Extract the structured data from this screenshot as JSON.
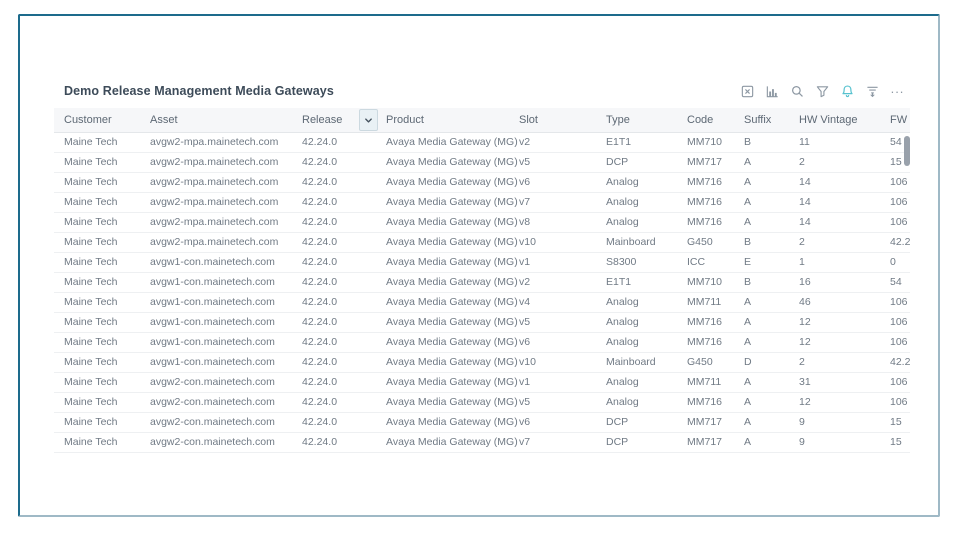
{
  "header": {
    "title": "Demo Release Management Media Gateways"
  },
  "toolbar": {
    "accent_color": "#57c2cf",
    "icon_color": "#8d98a3",
    "icons": [
      "excel-export-icon",
      "bar-chart-icon",
      "search-icon",
      "filter-funnel-icon",
      "alerts-bell-icon",
      "clear-filters-icon",
      "more-options-icon"
    ],
    "more_label": "..."
  },
  "table": {
    "columns": [
      {
        "label": "Customer"
      },
      {
        "label": "Asset"
      },
      {
        "label": "Release",
        "filter_dropdown": true
      },
      {
        "label": "Product"
      },
      {
        "label": "Slot"
      },
      {
        "label": "Type"
      },
      {
        "label": "Code"
      },
      {
        "label": "Suffix"
      },
      {
        "label": "HW Vintage"
      },
      {
        "label": "FW"
      }
    ],
    "rows": [
      [
        "Maine Tech",
        "avgw2-mpa.mainetech.com",
        "42.24.0",
        "Avaya Media Gateway (MG)",
        "v2",
        "E1T1",
        "MM710",
        "B",
        "11",
        "54"
      ],
      [
        "Maine Tech",
        "avgw2-mpa.mainetech.com",
        "42.24.0",
        "Avaya Media Gateway (MG)",
        "v5",
        "DCP",
        "MM717",
        "A",
        "2",
        "15"
      ],
      [
        "Maine Tech",
        "avgw2-mpa.mainetech.com",
        "42.24.0",
        "Avaya Media Gateway (MG)",
        "v6",
        "Analog",
        "MM716",
        "A",
        "14",
        "106"
      ],
      [
        "Maine Tech",
        "avgw2-mpa.mainetech.com",
        "42.24.0",
        "Avaya Media Gateway (MG)",
        "v7",
        "Analog",
        "MM716",
        "A",
        "14",
        "106"
      ],
      [
        "Maine Tech",
        "avgw2-mpa.mainetech.com",
        "42.24.0",
        "Avaya Media Gateway (MG)",
        "v8",
        "Analog",
        "MM716",
        "A",
        "14",
        "106"
      ],
      [
        "Maine Tech",
        "avgw2-mpa.mainetech.com",
        "42.24.0",
        "Avaya Media Gateway (MG)",
        "v10",
        "Mainboard",
        "G450",
        "B",
        "2",
        "42.2"
      ],
      [
        "Maine Tech",
        "avgw1-con.mainetech.com",
        "42.24.0",
        "Avaya Media Gateway (MG)",
        "v1",
        "S8300",
        "ICC",
        "E",
        "1",
        "0"
      ],
      [
        "Maine Tech",
        "avgw1-con.mainetech.com",
        "42.24.0",
        "Avaya Media Gateway (MG)",
        "v2",
        "E1T1",
        "MM710",
        "B",
        "16",
        "54"
      ],
      [
        "Maine Tech",
        "avgw1-con.mainetech.com",
        "42.24.0",
        "Avaya Media Gateway (MG)",
        "v4",
        "Analog",
        "MM711",
        "A",
        "46",
        "106"
      ],
      [
        "Maine Tech",
        "avgw1-con.mainetech.com",
        "42.24.0",
        "Avaya Media Gateway (MG)",
        "v5",
        "Analog",
        "MM716",
        "A",
        "12",
        "106"
      ],
      [
        "Maine Tech",
        "avgw1-con.mainetech.com",
        "42.24.0",
        "Avaya Media Gateway (MG)",
        "v6",
        "Analog",
        "MM716",
        "A",
        "12",
        "106"
      ],
      [
        "Maine Tech",
        "avgw1-con.mainetech.com",
        "42.24.0",
        "Avaya Media Gateway (MG)",
        "v10",
        "Mainboard",
        "G450",
        "D",
        "2",
        "42.2"
      ],
      [
        "Maine Tech",
        "avgw2-con.mainetech.com",
        "42.24.0",
        "Avaya Media Gateway (MG)",
        "v1",
        "Analog",
        "MM711",
        "A",
        "31",
        "106"
      ],
      [
        "Maine Tech",
        "avgw2-con.mainetech.com",
        "42.24.0",
        "Avaya Media Gateway (MG)",
        "v5",
        "Analog",
        "MM716",
        "A",
        "12",
        "106"
      ],
      [
        "Maine Tech",
        "avgw2-con.mainetech.com",
        "42.24.0",
        "Avaya Media Gateway (MG)",
        "v6",
        "DCP",
        "MM717",
        "A",
        "9",
        "15"
      ],
      [
        "Maine Tech",
        "avgw2-con.mainetech.com",
        "42.24.0",
        "Avaya Media Gateway (MG)",
        "v7",
        "DCP",
        "MM717",
        "A",
        "9",
        "15"
      ]
    ]
  }
}
